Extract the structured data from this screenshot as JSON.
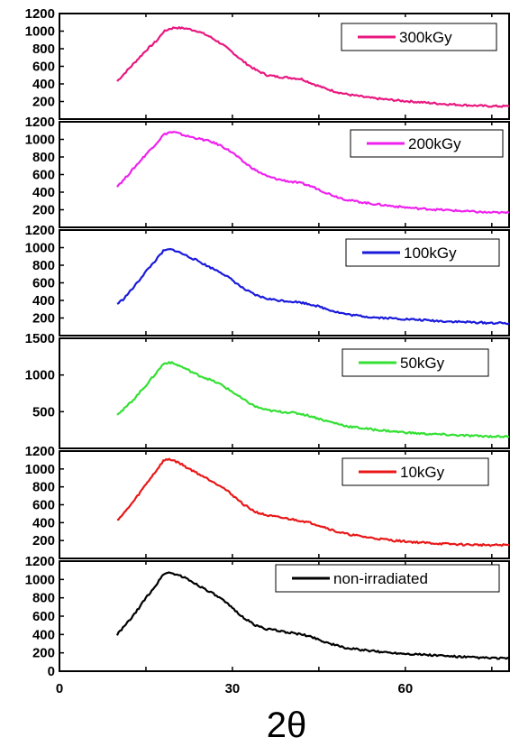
{
  "chart_data": {
    "type": "line",
    "layout": "stacked-panels",
    "xlabel": "2θ",
    "xlim": [
      0,
      78
    ],
    "xticks": [
      0,
      30,
      60
    ],
    "panels": [
      {
        "series_name": "300kGy",
        "color": "#e8187f",
        "ylim": [
          0,
          1200
        ],
        "yticks": [
          0,
          200,
          400,
          600,
          800,
          1000,
          1200
        ],
        "tick_labels": [
          "200",
          "400",
          "600",
          "800",
          "1000",
          "1200"
        ],
        "x": [
          10,
          11,
          13,
          15,
          17,
          18,
          19,
          20,
          21,
          22,
          24,
          26,
          28,
          30,
          32,
          34,
          36,
          38,
          40,
          42,
          44,
          46,
          48,
          50,
          54,
          58,
          62,
          66,
          70,
          74,
          78
        ],
        "y": [
          430,
          500,
          640,
          780,
          900,
          990,
          1025,
          1040,
          1035,
          1030,
          1000,
          940,
          860,
          760,
          650,
          560,
          500,
          480,
          470,
          455,
          400,
          350,
          310,
          280,
          240,
          215,
          195,
          175,
          160,
          148,
          145
        ]
      },
      {
        "series_name": "200kGy",
        "color": "#ee22ee",
        "ylim": [
          0,
          1200
        ],
        "yticks": [
          0,
          200,
          400,
          600,
          800,
          1000,
          1200
        ],
        "tick_labels": [
          "200",
          "400",
          "600",
          "800",
          "1000",
          "1200"
        ],
        "x": [
          10,
          11,
          13,
          15,
          17,
          18,
          19,
          20,
          21,
          22,
          24,
          26,
          28,
          30,
          32,
          34,
          36,
          38,
          40,
          42,
          44,
          46,
          48,
          50,
          54,
          58,
          62,
          66,
          70,
          74,
          78
        ],
        "y": [
          470,
          530,
          680,
          830,
          970,
          1050,
          1080,
          1080,
          1060,
          1040,
          1010,
          980,
          930,
          850,
          740,
          650,
          580,
          545,
          520,
          500,
          460,
          400,
          350,
          310,
          270,
          240,
          215,
          200,
          185,
          170,
          165
        ]
      },
      {
        "series_name": "100kGy",
        "color": "#1a1adb",
        "ylim": [
          0,
          1200
        ],
        "yticks": [
          0,
          200,
          400,
          600,
          800,
          1000,
          1200
        ],
        "tick_labels": [
          "200",
          "400",
          "600",
          "800",
          "1000",
          "1200"
        ],
        "x": [
          10,
          11,
          13,
          15,
          17,
          18,
          19,
          20,
          21,
          22,
          24,
          26,
          28,
          30,
          32,
          34,
          36,
          38,
          40,
          42,
          44,
          46,
          48,
          50,
          54,
          58,
          62,
          66,
          70,
          74,
          78
        ],
        "y": [
          360,
          410,
          560,
          730,
          880,
          960,
          980,
          970,
          940,
          910,
          850,
          780,
          720,
          630,
          530,
          460,
          420,
          400,
          390,
          375,
          350,
          310,
          270,
          240,
          210,
          195,
          180,
          165,
          155,
          145,
          140
        ]
      },
      {
        "series_name": "50kGy",
        "color": "#33e033",
        "ylim": [
          0,
          1500
        ],
        "yticks": [
          0,
          500,
          1000,
          1500
        ],
        "tick_labels": [
          "500",
          "1000",
          "1500"
        ],
        "x": [
          10,
          11,
          13,
          15,
          17,
          18,
          19,
          20,
          21,
          22,
          24,
          26,
          28,
          30,
          32,
          34,
          36,
          38,
          40,
          42,
          44,
          46,
          48,
          50,
          54,
          58,
          62,
          66,
          70,
          74,
          78
        ],
        "y": [
          470,
          520,
          680,
          860,
          1050,
          1150,
          1175,
          1150,
          1120,
          1080,
          1000,
          940,
          870,
          770,
          660,
          570,
          520,
          500,
          490,
          470,
          430,
          380,
          340,
          300,
          260,
          230,
          205,
          190,
          175,
          165,
          160
        ]
      },
      {
        "series_name": "10kGy",
        "color": "#e81818",
        "ylim": [
          0,
          1200
        ],
        "yticks": [
          0,
          200,
          400,
          600,
          800,
          1000,
          1200
        ],
        "tick_labels": [
          "200",
          "400",
          "600",
          "800",
          "1000",
          "1200"
        ],
        "x": [
          10,
          11,
          13,
          15,
          17,
          18,
          19,
          20,
          21,
          22,
          24,
          26,
          28,
          30,
          32,
          34,
          36,
          38,
          40,
          42,
          44,
          46,
          48,
          50,
          54,
          58,
          62,
          66,
          70,
          74,
          78
        ],
        "y": [
          430,
          490,
          650,
          830,
          1000,
          1090,
          1110,
          1090,
          1060,
          1020,
          950,
          880,
          810,
          710,
          600,
          520,
          480,
          460,
          440,
          420,
          390,
          350,
          300,
          270,
          230,
          200,
          180,
          165,
          155,
          150,
          150
        ]
      },
      {
        "series_name": "non-irradiated",
        "color": "#000000",
        "ylim": [
          0,
          1200
        ],
        "yticks": [
          0,
          200,
          400,
          600,
          800,
          1000,
          1200
        ],
        "tick_labels": [
          "0",
          "200",
          "400",
          "600",
          "800",
          "1000",
          "1200"
        ],
        "x": [
          10,
          11,
          13,
          15,
          17,
          18,
          19,
          20,
          21,
          22,
          24,
          26,
          28,
          30,
          32,
          34,
          36,
          38,
          40,
          42,
          44,
          46,
          48,
          50,
          54,
          58,
          62,
          66,
          70,
          74,
          78
        ],
        "y": [
          400,
          470,
          620,
          800,
          960,
          1060,
          1075,
          1060,
          1040,
          1010,
          940,
          870,
          790,
          690,
          580,
          500,
          460,
          440,
          420,
          400,
          370,
          320,
          280,
          250,
          220,
          200,
          185,
          170,
          155,
          145,
          140
        ]
      }
    ]
  }
}
